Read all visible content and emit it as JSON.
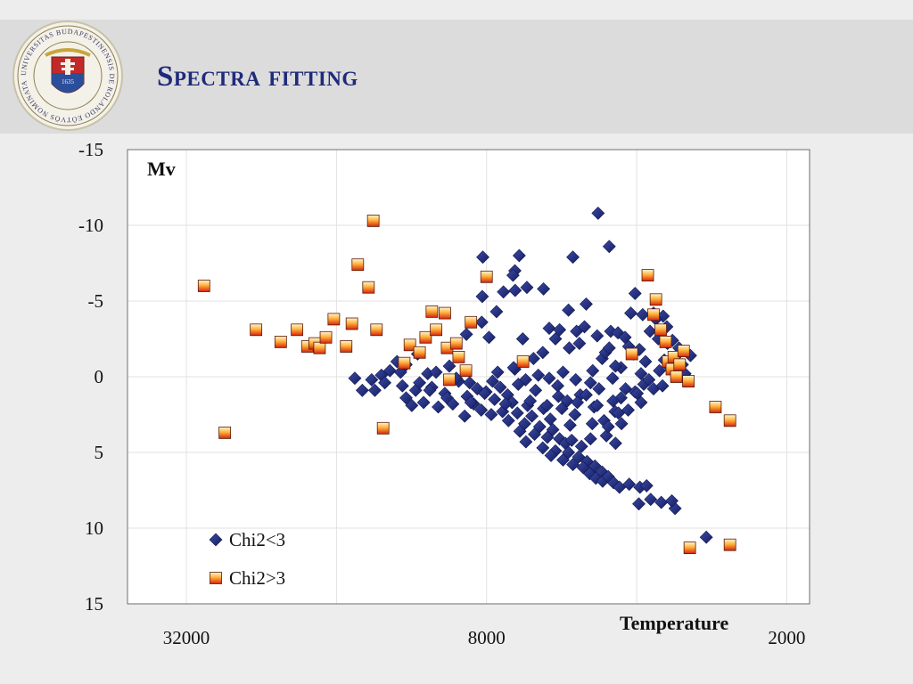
{
  "slide": {
    "title": "Spectra fitting",
    "logo_text": "UNIVERSITAS BUDAPESTINENSIS DE ROLANDO EÖTVÖS NOMINATA",
    "logo_year": "1635"
  },
  "chart_data": {
    "type": "scatter",
    "title": "",
    "xlabel": "Temperature",
    "ylabel": "Mv",
    "x_scale": "log",
    "x_reversed": true,
    "xlim": [
      42000,
      1800
    ],
    "x_ticks": [
      32000,
      8000,
      2000
    ],
    "x_tick_labels": [
      "32000",
      "8000",
      "2000"
    ],
    "y_reversed": true,
    "ylim": [
      -15,
      15
    ],
    "y_ticks": [
      -15,
      -10,
      -5,
      0,
      5,
      10,
      15
    ],
    "y_tick_labels": [
      "-15",
      "-10",
      "-5",
      "0",
      "5",
      "10",
      "15"
    ],
    "grid": true,
    "legend_position": "bottom-left",
    "colors": {
      "chi_lt3": "#1f2a7a",
      "chi_gt3": "#e8441a"
    },
    "series": [
      {
        "name": "Chi2<3",
        "marker": "diamond",
        "points": [
          [
            4780,
            -10.8
          ],
          [
            4540,
            -8.6
          ],
          [
            6880,
            -8.0
          ],
          [
            5370,
            -7.9
          ],
          [
            8140,
            -7.9
          ],
          [
            7020,
            -7.0
          ],
          [
            7080,
            -6.7
          ],
          [
            6150,
            -5.8
          ],
          [
            7400,
            -5.6
          ],
          [
            7010,
            -5.7
          ],
          [
            6640,
            -5.9
          ],
          [
            8160,
            -5.3
          ],
          [
            4030,
            -5.5
          ],
          [
            5050,
            -4.8
          ],
          [
            4110,
            -4.2
          ],
          [
            3890,
            -4.1
          ],
          [
            7640,
            -4.3
          ],
          [
            5480,
            -4.4
          ],
          [
            3700,
            -4.2
          ],
          [
            3540,
            -4.0
          ],
          [
            3660,
            -3.8
          ],
          [
            8180,
            -3.6
          ],
          [
            5990,
            -3.2
          ],
          [
            5090,
            -3.3
          ],
          [
            5710,
            -3.1
          ],
          [
            5280,
            -3.0
          ],
          [
            4510,
            -3.0
          ],
          [
            8780,
            -2.8
          ],
          [
            4360,
            -2.9
          ],
          [
            3760,
            -3.0
          ],
          [
            7910,
            -2.6
          ],
          [
            4220,
            -2.6
          ],
          [
            6770,
            -2.5
          ],
          [
            3620,
            -2.5
          ],
          [
            3470,
            -2.2
          ],
          [
            4800,
            -2.7
          ],
          [
            5820,
            -2.5
          ],
          [
            5210,
            -2.2
          ],
          [
            11000,
            -1.5
          ],
          [
            6170,
            -1.6
          ],
          [
            5460,
            -1.9
          ],
          [
            4060,
            -1.5
          ],
          [
            4690,
            -1.2
          ],
          [
            3520,
            -1.1
          ],
          [
            6440,
            -1.2
          ],
          [
            12100,
            -1.0
          ],
          [
            11600,
            -0.8
          ],
          [
            9500,
            -0.7
          ],
          [
            7020,
            -0.5
          ],
          [
            5620,
            -0.3
          ],
          [
            4300,
            -0.6
          ],
          [
            3920,
            -0.2
          ],
          [
            12500,
            -0.4
          ],
          [
            10500,
            -0.2
          ],
          [
            9100,
            0.3
          ],
          [
            7600,
            -0.3
          ],
          [
            6680,
            0.2
          ],
          [
            5990,
            0.1
          ],
          [
            4950,
            0.4
          ],
          [
            4470,
            0.1
          ],
          [
            3870,
            0.5
          ],
          [
            3600,
            -0.4
          ],
          [
            13400,
            0.9
          ],
          [
            11800,
            0.6
          ],
          [
            10300,
            0.7
          ],
          [
            8350,
            0.8
          ],
          [
            8020,
            1.0
          ],
          [
            7260,
            1.2
          ],
          [
            6380,
            0.9
          ],
          [
            5740,
            1.3
          ],
          [
            5190,
            1.2
          ],
          [
            4760,
            0.8
          ],
          [
            4300,
            1.4
          ],
          [
            4030,
            1.0
          ],
          [
            3700,
            0.8
          ],
          [
            13000,
            -0.1
          ],
          [
            11100,
            0.9
          ],
          [
            9700,
            1.1
          ],
          [
            8750,
            1.3
          ],
          [
            7710,
            1.5
          ],
          [
            7110,
            1.7
          ],
          [
            6620,
            1.9
          ],
          [
            6150,
            2.1
          ],
          [
            5510,
            1.6
          ],
          [
            4870,
            2.0
          ],
          [
            4420,
            2.3
          ],
          [
            3920,
            1.7
          ],
          [
            11600,
            1.4
          ],
          [
            8490,
            1.8
          ],
          [
            7430,
            2.3
          ],
          [
            6940,
            2.4
          ],
          [
            6490,
            2.6
          ],
          [
            5960,
            2.8
          ],
          [
            5320,
            2.5
          ],
          [
            4650,
            2.9
          ],
          [
            4160,
            2.2
          ],
          [
            8200,
            2.2
          ],
          [
            7830,
            2.5
          ],
          [
            7230,
            2.9
          ],
          [
            6710,
            3.1
          ],
          [
            6260,
            3.3
          ],
          [
            5890,
            3.5
          ],
          [
            5440,
            3.2
          ],
          [
            4910,
            3.1
          ],
          [
            6860,
            3.6
          ],
          [
            6410,
            3.8
          ],
          [
            6040,
            4.0
          ],
          [
            5710,
            4.1
          ],
          [
            5560,
            4.4
          ],
          [
            5400,
            4.2
          ],
          [
            5160,
            4.6
          ],
          [
            6670,
            4.3
          ],
          [
            6170,
            4.7
          ],
          [
            5820,
            4.9
          ],
          [
            5480,
            5.0
          ],
          [
            5230,
            5.3
          ],
          [
            5030,
            5.6
          ],
          [
            4850,
            5.9
          ],
          [
            4690,
            6.3
          ],
          [
            5940,
            5.2
          ],
          [
            5620,
            5.5
          ],
          [
            5370,
            5.8
          ],
          [
            5120,
            6.0
          ],
          [
            4970,
            6.4
          ],
          [
            4830,
            6.7
          ],
          [
            4680,
            6.9
          ],
          [
            4560,
            6.6
          ],
          [
            4450,
            7.0
          ],
          [
            4330,
            7.3
          ],
          [
            4140,
            7.1
          ],
          [
            3940,
            7.3
          ],
          [
            3820,
            7.2
          ],
          [
            3750,
            8.1
          ],
          [
            3570,
            8.3
          ],
          [
            3960,
            8.4
          ],
          [
            3350,
            8.7
          ],
          [
            3400,
            8.2
          ],
          [
            2900,
            10.6
          ],
          [
            4950,
            4.1
          ],
          [
            4600,
            3.9
          ],
          [
            4800,
            1.9
          ],
          [
            4460,
            1.6
          ],
          [
            4210,
            0.8
          ],
          [
            3990,
            1.1
          ],
          [
            3780,
            0.2
          ],
          [
            3550,
            0.6
          ],
          [
            3430,
            -0.6
          ],
          [
            3350,
            -1.3
          ],
          [
            3290,
            -1.9
          ],
          [
            3390,
            -2.4
          ],
          [
            3480,
            -3.3
          ],
          [
            3240,
            -0.8
          ],
          [
            3120,
            -1.4
          ],
          [
            3200,
            -0.2
          ],
          [
            4350,
            2.4
          ],
          [
            4560,
            3.3
          ],
          [
            4410,
            4.4
          ],
          [
            4290,
            3.1
          ],
          [
            10100,
            -0.3
          ],
          [
            9200,
            0.1
          ],
          [
            8650,
            0.4
          ],
          [
            9600,
            1.4
          ],
          [
            10700,
            1.7
          ],
          [
            8070,
            1.1
          ],
          [
            7510,
            0.7
          ],
          [
            6910,
            0.5
          ],
          [
            7330,
            1.8
          ],
          [
            6540,
            1.6
          ],
          [
            6050,
            1.9
          ],
          [
            5650,
            2.1
          ],
          [
            5260,
            1.7
          ],
          [
            5050,
            1.2
          ],
          [
            4900,
            -0.4
          ],
          [
            4620,
            -1.6
          ],
          [
            4410,
            -0.7
          ],
          [
            4150,
            -2.0
          ],
          [
            3950,
            -1.8
          ],
          [
            3840,
            -1.0
          ],
          [
            4540,
            -1.9
          ],
          [
            5300,
            0.2
          ],
          [
            5760,
            0.6
          ],
          [
            6300,
            -0.1
          ],
          [
            7060,
            -0.6
          ],
          [
            7780,
            0.3
          ],
          [
            8600,
            1.7
          ],
          [
            8850,
            2.6
          ],
          [
            9350,
            1.8
          ],
          [
            10000,
            2.0
          ],
          [
            10400,
            0.9
          ],
          [
            10900,
            0.4
          ],
          [
            11300,
            1.9
          ],
          [
            11900,
            -0.3
          ],
          [
            12800,
            0.4
          ],
          [
            13600,
            0.2
          ],
          [
            14200,
            0.9
          ],
          [
            14700,
            0.1
          ]
        ]
      },
      {
        "name": "Chi2>3",
        "marker": "square",
        "points": [
          [
            29500,
            -6.0
          ],
          [
            23200,
            -3.1
          ],
          [
            26800,
            3.7
          ],
          [
            20700,
            -2.3
          ],
          [
            19200,
            -3.1
          ],
          [
            18300,
            -2.0
          ],
          [
            17700,
            -2.2
          ],
          [
            17300,
            -1.9
          ],
          [
            16800,
            -2.6
          ],
          [
            16200,
            -3.8
          ],
          [
            15300,
            -2.0
          ],
          [
            14900,
            -3.5
          ],
          [
            14500,
            -7.4
          ],
          [
            13800,
            -5.9
          ],
          [
            13500,
            -10.3
          ],
          [
            13300,
            -3.1
          ],
          [
            12900,
            3.4
          ],
          [
            11400,
            -2.1
          ],
          [
            11700,
            -0.9
          ],
          [
            10900,
            -1.6
          ],
          [
            10600,
            -2.6
          ],
          [
            10300,
            -4.3
          ],
          [
            10100,
            -3.1
          ],
          [
            9700,
            -4.2
          ],
          [
            9600,
            -1.9
          ],
          [
            9500,
            0.2
          ],
          [
            9200,
            -2.2
          ],
          [
            9100,
            -1.3
          ],
          [
            8800,
            -0.4
          ],
          [
            8600,
            -3.6
          ],
          [
            8000,
            -6.6
          ],
          [
            6760,
            -1.0
          ],
          [
            4090,
            -1.5
          ],
          [
            3800,
            -6.7
          ],
          [
            3700,
            -4.1
          ],
          [
            3660,
            -5.1
          ],
          [
            3580,
            -3.1
          ],
          [
            3500,
            -2.3
          ],
          [
            3460,
            -1.0
          ],
          [
            3400,
            -0.5
          ],
          [
            3370,
            -1.3
          ],
          [
            3330,
            0.0
          ],
          [
            3280,
            -0.8
          ],
          [
            3220,
            -1.7
          ],
          [
            3150,
            0.3
          ],
          [
            2780,
            2.0
          ],
          [
            2600,
            2.9
          ],
          [
            3130,
            11.3
          ],
          [
            2600,
            11.1
          ]
        ]
      }
    ]
  }
}
